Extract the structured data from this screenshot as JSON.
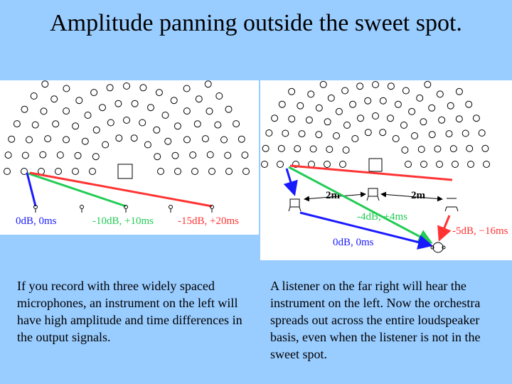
{
  "slide": {
    "title": "Amplitude panning outside the sweet spot."
  },
  "left_diagram": {
    "label_mic1": "0dB, 0ms",
    "label_mic2": "-10dB, +10ms",
    "label_mic3": "-15dB, +20ms"
  },
  "right_diagram": {
    "dist_left": "2m",
    "dist_right": "2m",
    "label_green": "-4dB, +4ms",
    "label_red": "-5dB, −16ms",
    "label_blue": "0dB, 0ms"
  },
  "captions": {
    "left": "If you record with three widely spaced microphones, an instrument on the left will have high amplitude and time differences in the output signals.",
    "right": "A listener on the far right will hear the instrument on the left.  Now the orchestra spreads out across the entire loudspeaker basis, even when the listener is not in the sweet spot."
  },
  "colors": {
    "background": "#99ccff",
    "blue": "#1a1aff",
    "green": "#22cc55",
    "red": "#ff3333"
  }
}
